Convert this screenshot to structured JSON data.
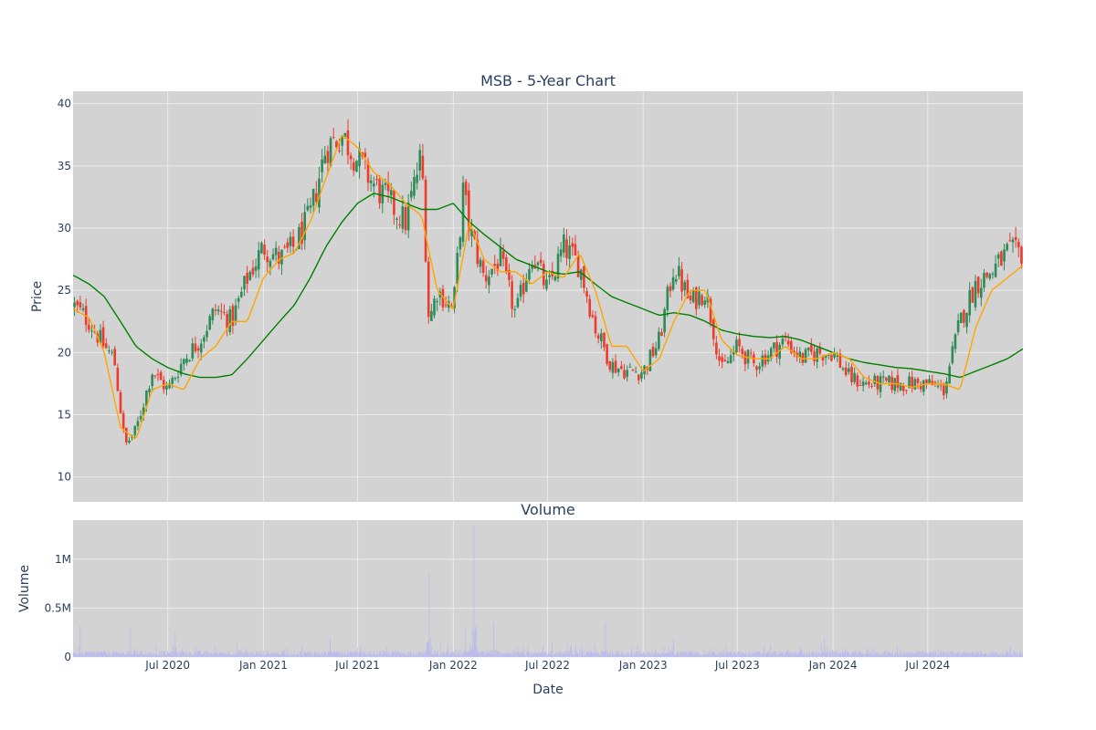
{
  "colors": {
    "plot_bg": "#d3d3d3",
    "grid": "#ebebeb",
    "up": "#2e8b57",
    "down": "#ef3b2c",
    "ma_short": "#ffa500",
    "ma_long": "#008000",
    "volume": "#b7b7f0",
    "text": "#2a3f5f"
  },
  "chart_data": [
    {
      "type": "candlestick",
      "title": "MSB - 5-Year Chart",
      "xlabel": "",
      "ylabel": "Price",
      "x_range": [
        "2020-01-01",
        "2024-12-31"
      ],
      "ylim": [
        8,
        41
      ],
      "yticks": [
        10,
        15,
        20,
        25,
        30,
        35,
        40
      ],
      "grid": true,
      "legend": "none",
      "series": [
        {
          "kind": "ohlc-trend",
          "x": [
            "2020-01-02",
            "2020-02-01",
            "2020-03-01",
            "2020-03-20",
            "2020-04-10",
            "2020-05-01",
            "2020-06-01",
            "2020-07-01",
            "2020-08-01",
            "2020-09-01",
            "2020-10-01",
            "2020-11-01",
            "2020-12-01",
            "2021-01-01",
            "2021-02-01",
            "2021-03-01",
            "2021-04-01",
            "2021-05-01",
            "2021-06-01",
            "2021-07-01",
            "2021-08-01",
            "2021-09-01",
            "2021-10-01",
            "2021-11-01",
            "2021-11-15",
            "2021-12-01",
            "2022-01-01",
            "2022-01-20",
            "2022-02-01",
            "2022-03-01",
            "2022-04-01",
            "2022-05-01",
            "2022-06-01",
            "2022-07-01",
            "2022-08-01",
            "2022-09-01",
            "2022-10-01",
            "2022-11-01",
            "2022-12-01",
            "2023-01-01",
            "2023-02-01",
            "2023-03-01",
            "2023-04-01",
            "2023-05-01",
            "2023-06-01",
            "2023-07-01",
            "2023-08-01",
            "2023-09-01",
            "2023-10-01",
            "2023-11-01",
            "2023-12-01",
            "2024-01-01",
            "2024-02-01",
            "2024-03-01",
            "2024-04-01",
            "2024-05-01",
            "2024-06-01",
            "2024-07-01",
            "2024-08-01",
            "2024-09-01",
            "2024-10-01",
            "2024-11-01",
            "2024-12-01",
            "2024-12-31"
          ],
          "close": [
            23.8,
            22.5,
            20.5,
            19.5,
            12.5,
            13.8,
            18.5,
            17.0,
            19.5,
            21.0,
            23.5,
            22.5,
            26.0,
            28.5,
            27.5,
            28.5,
            31.0,
            36.5,
            37.5,
            35.5,
            33.5,
            32.0,
            30.5,
            36.0,
            22.5,
            25.0,
            23.5,
            33.0,
            30.0,
            26.0,
            27.5,
            23.0,
            28.0,
            25.0,
            28.5,
            27.0,
            22.0,
            19.0,
            18.5,
            18.5,
            21.0,
            27.0,
            24.0,
            25.0,
            18.5,
            20.5,
            19.0,
            20.0,
            21.0,
            19.5,
            20.0,
            20.0,
            18.0,
            17.5,
            17.5,
            17.5,
            17.5,
            17.5,
            17.0,
            22.5,
            25.5,
            26.5,
            28.0,
            28.0
          ]
        },
        {
          "name": "",
          "kind": "ma-short",
          "x": [
            "2020-01-02",
            "2020-02-01",
            "2020-03-01",
            "2020-04-01",
            "2020-05-01",
            "2020-06-01",
            "2020-07-01",
            "2020-08-01",
            "2020-09-01",
            "2020-10-01",
            "2020-11-01",
            "2020-12-01",
            "2021-01-01",
            "2021-02-01",
            "2021-03-01",
            "2021-04-01",
            "2021-05-01",
            "2021-06-01",
            "2021-07-01",
            "2021-08-01",
            "2021-09-01",
            "2021-10-01",
            "2021-11-01",
            "2021-12-01",
            "2022-01-01",
            "2022-02-01",
            "2022-03-01",
            "2022-04-01",
            "2022-05-01",
            "2022-06-01",
            "2022-07-01",
            "2022-08-01",
            "2022-09-01",
            "2022-10-01",
            "2022-11-01",
            "2022-12-01",
            "2023-01-01",
            "2023-02-01",
            "2023-03-01",
            "2023-04-01",
            "2023-05-01",
            "2023-06-01",
            "2023-07-01",
            "2023-08-01",
            "2023-09-01",
            "2023-10-01",
            "2023-11-01",
            "2023-12-01",
            "2024-01-01",
            "2024-02-01",
            "2024-03-01",
            "2024-04-01",
            "2024-05-01",
            "2024-06-01",
            "2024-07-01",
            "2024-08-01",
            "2024-09-01",
            "2024-10-01",
            "2024-11-01",
            "2024-12-01",
            "2024-12-31"
          ],
          "values": [
            23.5,
            22.8,
            20.0,
            14.0,
            13.0,
            17.0,
            17.5,
            17.0,
            19.5,
            20.5,
            22.5,
            22.5,
            26.0,
            27.5,
            28.0,
            30.5,
            34.0,
            37.5,
            36.5,
            34.5,
            33.5,
            32.0,
            31.0,
            25.0,
            23.5,
            30.5,
            27.5,
            26.5,
            26.5,
            25.5,
            26.5,
            26.0,
            28.0,
            25.0,
            20.5,
            20.5,
            18.5,
            19.5,
            22.5,
            25.0,
            25.0,
            21.0,
            19.8,
            19.5,
            19.5,
            20.5,
            19.5,
            19.5,
            20.0,
            19.5,
            18.0,
            17.5,
            17.5,
            17.2,
            17.5,
            17.5,
            17.0,
            22.0,
            25.0,
            26.0,
            27.0
          ]
        },
        {
          "name": "",
          "kind": "ma-long",
          "x": [
            "2020-01-02",
            "2020-02-01",
            "2020-03-01",
            "2020-04-01",
            "2020-05-01",
            "2020-06-01",
            "2020-07-01",
            "2020-08-01",
            "2020-09-01",
            "2020-10-01",
            "2020-11-01",
            "2020-12-01",
            "2021-01-01",
            "2021-02-01",
            "2021-03-01",
            "2021-04-01",
            "2021-05-01",
            "2021-06-01",
            "2021-07-01",
            "2021-08-01",
            "2021-09-01",
            "2021-10-01",
            "2021-11-01",
            "2021-12-01",
            "2022-01-01",
            "2022-02-01",
            "2022-03-01",
            "2022-04-01",
            "2022-05-01",
            "2022-06-01",
            "2022-07-01",
            "2022-08-01",
            "2022-09-01",
            "2022-10-01",
            "2022-11-01",
            "2022-12-01",
            "2023-01-01",
            "2023-02-01",
            "2023-03-01",
            "2023-04-01",
            "2023-05-01",
            "2023-06-01",
            "2023-07-01",
            "2023-08-01",
            "2023-09-01",
            "2023-10-01",
            "2023-11-01",
            "2023-12-01",
            "2024-01-01",
            "2024-02-01",
            "2024-03-01",
            "2024-04-01",
            "2024-05-01",
            "2024-06-01",
            "2024-07-01",
            "2024-08-01",
            "2024-09-01",
            "2024-10-01",
            "2024-11-01",
            "2024-12-01",
            "2024-12-31"
          ],
          "values": [
            26.2,
            25.5,
            24.5,
            22.5,
            20.5,
            19.5,
            18.8,
            18.3,
            18.0,
            18.0,
            18.2,
            19.5,
            21.0,
            22.5,
            23.8,
            26.0,
            28.5,
            30.5,
            32.0,
            32.8,
            32.5,
            32.0,
            31.5,
            31.5,
            32.0,
            30.5,
            29.5,
            28.5,
            27.5,
            27.0,
            26.5,
            26.3,
            26.5,
            25.5,
            24.5,
            24.0,
            23.5,
            23.0,
            23.2,
            23.0,
            22.5,
            21.8,
            21.5,
            21.3,
            21.2,
            21.3,
            21.0,
            20.5,
            20.0,
            19.5,
            19.2,
            19.0,
            18.8,
            18.7,
            18.5,
            18.3,
            18.0,
            18.5,
            19.0,
            19.5,
            20.3
          ]
        }
      ]
    },
    {
      "type": "bar",
      "title": "Volume",
      "xlabel": "Date",
      "ylabel": "Volume",
      "ylim": [
        0,
        1400000
      ],
      "yticks": [
        {
          "value": 0,
          "label": "0"
        },
        {
          "value": 500000,
          "label": "0.5M"
        },
        {
          "value": 1000000,
          "label": "1M"
        }
      ],
      "xticks": [
        {
          "value": "2020-07-01",
          "label": "Jul 2020"
        },
        {
          "value": "2021-01-01",
          "label": "Jan 2021"
        },
        {
          "value": "2021-07-01",
          "label": "Jul 2021"
        },
        {
          "value": "2022-01-01",
          "label": "Jan 2022"
        },
        {
          "value": "2022-07-01",
          "label": "Jul 2022"
        },
        {
          "value": "2023-01-01",
          "label": "Jan 2023"
        },
        {
          "value": "2023-07-01",
          "label": "Jul 2023"
        },
        {
          "value": "2024-01-01",
          "label": "Jan 2024"
        },
        {
          "value": "2024-07-01",
          "label": "Jul 2024"
        }
      ],
      "grid": true,
      "baseline_level": 50000,
      "spikes": [
        {
          "x": "2020-01-15",
          "value": 320000
        },
        {
          "x": "2020-03-20",
          "value": 200000
        },
        {
          "x": "2020-04-20",
          "value": 300000
        },
        {
          "x": "2020-05-10",
          "value": 250000
        },
        {
          "x": "2020-07-15",
          "value": 250000
        },
        {
          "x": "2021-05-10",
          "value": 200000
        },
        {
          "x": "2021-11-15",
          "value": 850000
        },
        {
          "x": "2022-01-25",
          "value": 300000
        },
        {
          "x": "2022-02-10",
          "value": 1350000
        },
        {
          "x": "2022-03-20",
          "value": 350000
        },
        {
          "x": "2022-07-10",
          "value": 150000
        },
        {
          "x": "2022-10-20",
          "value": 350000
        },
        {
          "x": "2023-03-01",
          "value": 180000
        },
        {
          "x": "2023-12-15",
          "value": 200000
        },
        {
          "x": "2024-08-20",
          "value": 280000
        }
      ]
    }
  ]
}
